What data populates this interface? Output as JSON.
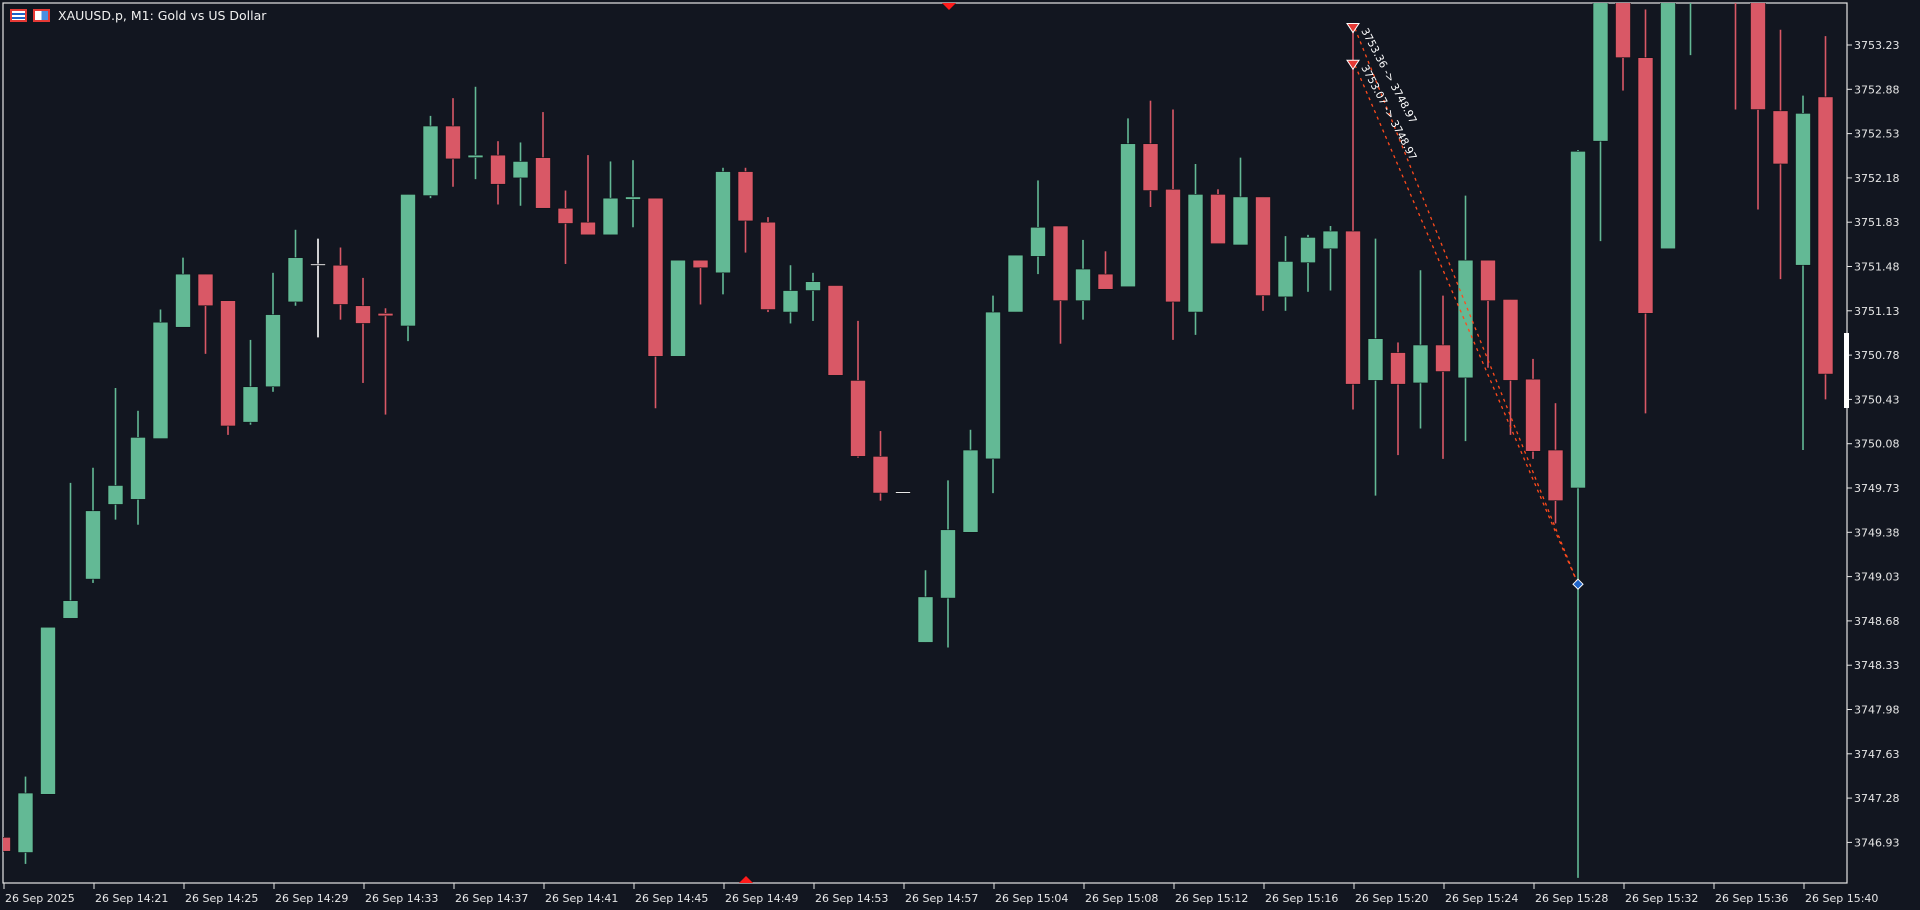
{
  "header": {
    "title": "XAUUSD.p, M1:  Gold vs US Dollar",
    "icons": [
      "one-click-trading-icon",
      "depth-of-market-icon"
    ]
  },
  "colors": {
    "background": "#121620",
    "bull": "#63b995",
    "bear": "#d95866",
    "doji": "#ffffff",
    "trade_line": "#ff4a1c",
    "sell_marker": "#e53935",
    "close_marker": "#1e63c8",
    "axis": "#e6e6e6"
  },
  "trades": [
    {
      "label": "3753.36 -> 3748.97",
      "open_price": 3753.36,
      "close_price": 3748.97,
      "open_bar": 60,
      "close_bar": 70,
      "type": "sell"
    },
    {
      "label": "3753.07 -> 3748.97",
      "open_price": 3753.07,
      "close_price": 3748.97,
      "open_bar": 60,
      "close_bar": 70,
      "type": "sell"
    }
  ],
  "chart_data": {
    "type": "candlestick",
    "symbol": "XAUUSD.p",
    "timeframe": "M1",
    "ylim": [
      3746.62,
      3753.57
    ],
    "y_ticks": [
      "3753.23",
      "3752.88",
      "3752.53",
      "3752.18",
      "3751.83",
      "3751.48",
      "3751.13",
      "3750.78",
      "3750.43",
      "3750.08",
      "3749.73",
      "3749.38",
      "3749.03",
      "3748.68",
      "3748.33",
      "3747.98",
      "3747.63",
      "3747.28",
      "3746.93"
    ],
    "x_ticks": [
      "26 Sep 2025",
      "26 Sep 14:21",
      "26 Sep 14:25",
      "26 Sep 14:29",
      "26 Sep 14:33",
      "26 Sep 14:37",
      "26 Sep 14:41",
      "26 Sep 14:45",
      "26 Sep 14:49",
      "26 Sep 14:53",
      "26 Sep 14:57",
      "26 Sep 15:04",
      "26 Sep 15:08",
      "26 Sep 15:12",
      "26 Sep 15:16",
      "26 Sep 15:20",
      "26 Sep 15:24",
      "26 Sep 15:28",
      "26 Sep 15:32",
      "26 Sep 15:36",
      "26 Sep 15:40"
    ],
    "ohlc_columns": [
      "open",
      "high",
      "low",
      "close"
    ],
    "candles": [
      [
        3746.97,
        3746.97,
        3746.86,
        3746.86
      ],
      [
        3746.85,
        3747.45,
        3746.76,
        3747.32
      ],
      [
        3747.31,
        3748.63,
        3747.31,
        3748.63
      ],
      [
        3748.7,
        3749.77,
        3748.7,
        3748.84
      ],
      [
        3749.01,
        3749.89,
        3748.98,
        3749.55
      ],
      [
        3749.6,
        3750.52,
        3749.48,
        3749.75
      ],
      [
        3749.64,
        3750.34,
        3749.44,
        3750.13
      ],
      [
        3750.12,
        3751.14,
        3750.12,
        3751.04
      ],
      [
        3751.0,
        3751.55,
        3751.0,
        3751.42
      ],
      [
        3751.42,
        3751.42,
        3750.79,
        3751.17
      ],
      [
        3751.21,
        3751.21,
        3750.15,
        3750.22
      ],
      [
        3750.25,
        3750.9,
        3750.23,
        3750.53
      ],
      [
        3750.53,
        3751.43,
        3750.49,
        3751.1
      ],
      [
        3751.2,
        3751.77,
        3751.17,
        3751.55
      ],
      [
        3751.5,
        3751.7,
        3750.92,
        3751.5
      ],
      [
        3751.49,
        3751.63,
        3751.06,
        3751.18
      ],
      [
        3751.17,
        3751.39,
        3750.56,
        3751.03
      ],
      [
        3751.11,
        3751.15,
        3750.31,
        3751.09
      ],
      [
        3751.01,
        3752.05,
        3750.89,
        3752.05
      ],
      [
        3752.04,
        3752.67,
        3752.02,
        3752.59
      ],
      [
        3752.59,
        3752.81,
        3752.11,
        3752.33
      ],
      [
        3752.34,
        3752.9,
        3752.17,
        3752.36
      ],
      [
        3752.36,
        3752.47,
        3751.97,
        3752.13
      ],
      [
        3752.18,
        3752.46,
        3751.96,
        3752.31
      ],
      [
        3752.34,
        3752.7,
        3751.94,
        3751.94
      ],
      [
        3751.94,
        3752.08,
        3751.5,
        3751.82
      ],
      [
        3751.83,
        3752.36,
        3751.73,
        3751.73
      ],
      [
        3751.73,
        3752.31,
        3751.73,
        3752.02
      ],
      [
        3752.01,
        3752.32,
        3751.79,
        3752.03
      ],
      [
        3752.02,
        3752.02,
        3750.36,
        3750.77
      ],
      [
        3750.77,
        3751.53,
        3750.77,
        3751.53
      ],
      [
        3751.53,
        3751.53,
        3751.18,
        3751.47
      ],
      [
        3751.43,
        3752.26,
        3751.26,
        3752.23
      ],
      [
        3752.23,
        3752.26,
        3751.59,
        3751.84
      ],
      [
        3751.83,
        3751.87,
        3751.12,
        3751.14
      ],
      [
        3751.12,
        3751.49,
        3751.03,
        3751.29
      ],
      [
        3751.29,
        3751.43,
        3751.05,
        3751.36
      ],
      [
        3751.33,
        3751.33,
        3750.62,
        3750.62
      ],
      [
        3750.58,
        3751.05,
        3749.97,
        3749.98
      ],
      [
        3749.98,
        3750.18,
        3749.63,
        3749.69
      ],
      [
        3749.7,
        3749.7,
        3749.7,
        3749.7
      ],
      [
        3748.51,
        3749.08,
        3748.51,
        3748.87
      ],
      [
        3748.86,
        3749.79,
        3748.47,
        3749.4
      ],
      [
        3749.38,
        3750.19,
        3749.38,
        3750.03
      ],
      [
        3749.96,
        3751.25,
        3749.69,
        3751.12
      ],
      [
        3751.12,
        3751.57,
        3751.12,
        3751.57
      ],
      [
        3751.56,
        3752.16,
        3751.42,
        3751.79
      ],
      [
        3751.8,
        3751.8,
        3750.87,
        3751.21
      ],
      [
        3751.21,
        3751.69,
        3751.06,
        3751.46
      ],
      [
        3751.42,
        3751.6,
        3751.3,
        3751.3
      ],
      [
        3751.32,
        3752.65,
        3751.32,
        3752.45
      ],
      [
        3752.45,
        3752.79,
        3751.95,
        3752.08
      ],
      [
        3752.09,
        3752.72,
        3750.9,
        3751.2
      ],
      [
        3751.12,
        3752.29,
        3750.94,
        3752.05
      ],
      [
        3752.05,
        3752.09,
        3751.66,
        3751.66
      ],
      [
        3751.65,
        3752.34,
        3751.65,
        3752.03
      ],
      [
        3752.03,
        3752.03,
        3751.13,
        3751.25
      ],
      [
        3751.24,
        3751.72,
        3751.13,
        3751.52
      ],
      [
        3751.51,
        3751.73,
        3751.28,
        3751.71
      ],
      [
        3751.62,
        3751.8,
        3751.29,
        3751.76
      ],
      [
        3751.76,
        3753.36,
        3750.35,
        3750.55
      ],
      [
        3750.58,
        3751.7,
        3749.67,
        3750.91
      ],
      [
        3750.8,
        3750.88,
        3749.99,
        3750.55
      ],
      [
        3750.56,
        3751.45,
        3750.2,
        3750.86
      ],
      [
        3750.86,
        3751.25,
        3749.96,
        3750.65
      ],
      [
        3750.6,
        3752.04,
        3750.1,
        3751.53
      ],
      [
        3751.53,
        3751.53,
        3750.68,
        3751.21
      ],
      [
        3751.22,
        3751.22,
        3750.15,
        3750.58
      ],
      [
        3750.59,
        3750.75,
        3749.96,
        3750.02
      ],
      [
        3750.03,
        3750.4,
        3749.45,
        3749.63
      ],
      [
        3749.73,
        3752.4,
        3746.65,
        3752.39
      ],
      [
        3752.47,
        3753.8,
        3751.68,
        3753.7
      ],
      [
        3753.7,
        3753.85,
        3752.87,
        3753.13
      ],
      [
        3753.13,
        3753.51,
        3750.32,
        3751.11
      ],
      [
        3751.62,
        3753.85,
        3751.62,
        3753.75
      ],
      [
        3753.7,
        3754.1,
        3753.15,
        3754.0
      ],
      [
        3753.8,
        3754.2,
        3753.7,
        3754.0
      ],
      [
        3754.0,
        3754.1,
        3752.72,
        3753.7
      ],
      [
        3753.7,
        3753.8,
        3751.93,
        3752.72
      ],
      [
        3752.71,
        3753.35,
        3751.38,
        3752.29
      ],
      [
        3751.49,
        3752.83,
        3750.03,
        3752.69
      ],
      [
        3752.82,
        3753.3,
        3750.43,
        3750.63
      ]
    ]
  }
}
